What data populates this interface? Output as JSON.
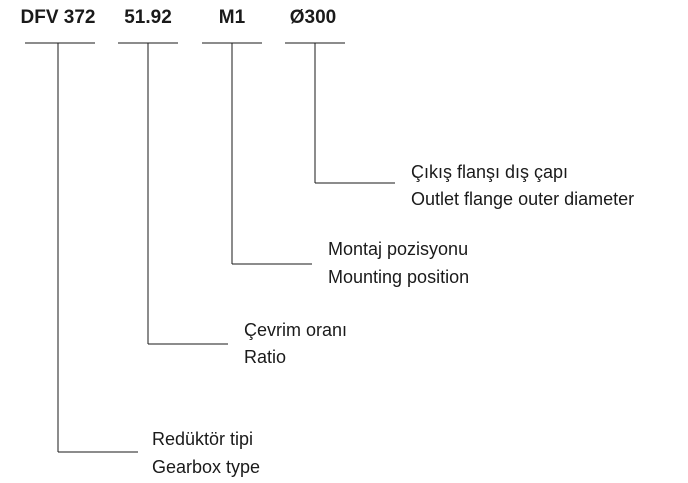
{
  "codes": [
    {
      "code": "DFV 372",
      "label_tr": "Redüktör tipi",
      "label_en": "Gearbox type"
    },
    {
      "code": "51.92",
      "label_tr": "Çevrim oranı",
      "label_en": "Ratio"
    },
    {
      "code": "M1",
      "label_tr": "Montaj pozisyonu",
      "label_en": "Mounting position"
    },
    {
      "code": "Ø300",
      "label_tr": "Çıkış flanşı dış çapı",
      "label_en": "Outlet flange outer diameter"
    }
  ]
}
